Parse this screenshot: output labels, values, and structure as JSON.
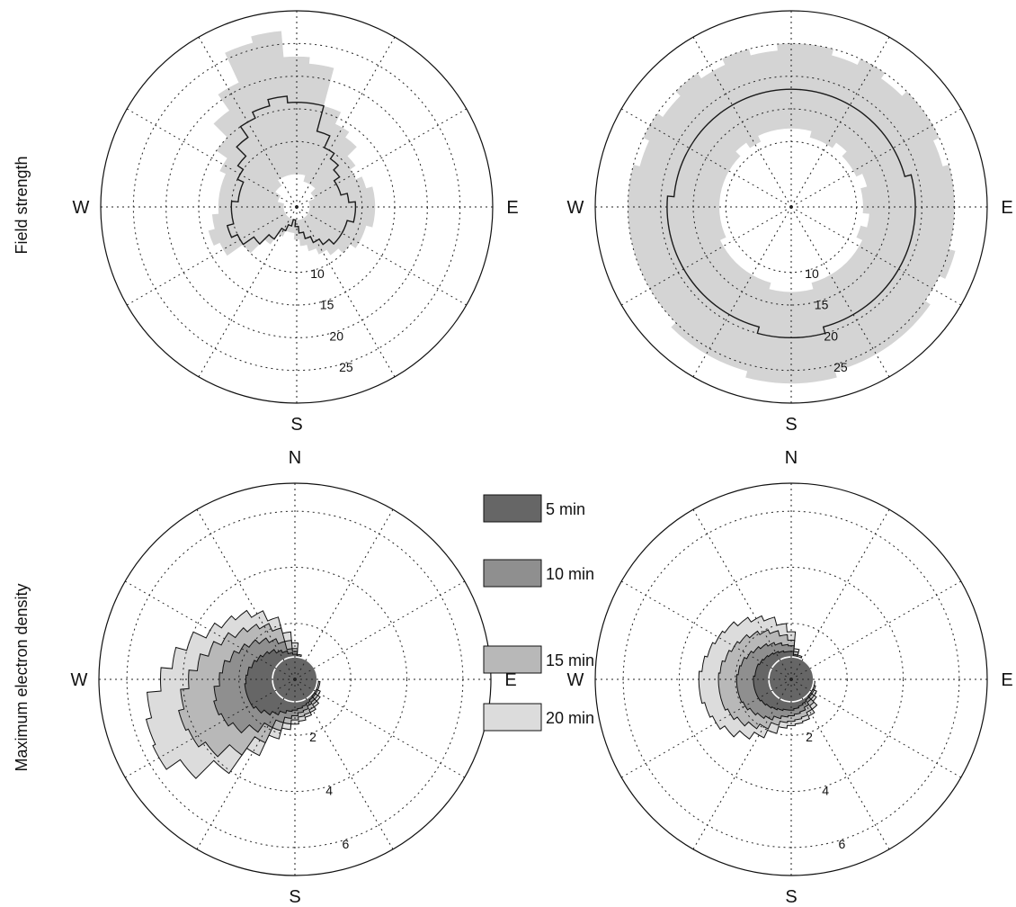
{
  "row_labels": {
    "top": "Field strength",
    "bottom": "Maximum electron density"
  },
  "chart_data": [
    {
      "type": "polar-area",
      "panel": "top-left",
      "ylabel": "Field strength",
      "direction_labels": [
        "N",
        "E",
        "S",
        "W"
      ],
      "shown_direction_labels": {
        "N": "",
        "E": "E",
        "S": "S",
        "W": "W"
      },
      "rmax": 30,
      "radial_ticks": [
        10,
        15,
        20,
        25
      ],
      "radial_tick_labels": [
        "10",
        "15",
        "20",
        "25"
      ],
      "grid": true,
      "colors": {
        "band": "#d4d4d4",
        "line": "#1a1a1a"
      },
      "angles_deg": [
        0,
        10,
        20,
        30,
        40,
        50,
        60,
        70,
        80,
        90,
        100,
        110,
        120,
        130,
        140,
        150,
        160,
        170,
        180,
        190,
        200,
        210,
        220,
        230,
        240,
        250,
        260,
        270,
        280,
        290,
        300,
        310,
        320,
        330,
        340,
        350
      ],
      "series": [
        {
          "role": "band-outer",
          "values": [
            23,
            22,
            16,
            14,
            13,
            11,
            10,
            11,
            12,
            12,
            12,
            11,
            11,
            10,
            9,
            8,
            7,
            6,
            5,
            4,
            4,
            5,
            7,
            10,
            13,
            14,
            13,
            12,
            12,
            12,
            13,
            15,
            18,
            21,
            26,
            27
          ]
        },
        {
          "role": "band-inner",
          "values": [
            5,
            5,
            4,
            4,
            4,
            3,
            3,
            2,
            2,
            2,
            2,
            2,
            2,
            2,
            2,
            2,
            2,
            2,
            2,
            2,
            2,
            2,
            2,
            2,
            2,
            2,
            2,
            2,
            2,
            3,
            3,
            4,
            4,
            5,
            5,
            5
          ]
        },
        {
          "role": "line",
          "values": [
            16,
            16,
            12,
            10,
            9,
            8,
            7,
            7,
            8,
            9,
            9,
            8,
            8,
            8,
            7,
            6,
            5,
            4,
            3,
            2,
            3,
            4,
            6,
            8,
            10,
            11,
            10,
            10,
            9,
            9,
            10,
            11,
            13,
            15,
            16,
            17
          ]
        }
      ]
    },
    {
      "type": "polar-area",
      "panel": "top-right",
      "ylabel": "",
      "direction_labels": [
        "N",
        "E",
        "S",
        "W"
      ],
      "shown_direction_labels": {
        "N": "",
        "E": "E",
        "S": "S",
        "W": "W"
      },
      "rmax": 30,
      "radial_ticks": [
        10,
        15,
        20,
        25
      ],
      "radial_tick_labels": [
        "10",
        "15",
        "20",
        "25"
      ],
      "grid": true,
      "colors": {
        "band": "#d4d4d4",
        "line": "#1a1a1a"
      },
      "angles_deg": [
        0,
        10,
        20,
        30,
        40,
        50,
        60,
        70,
        80,
        90,
        100,
        110,
        120,
        130,
        140,
        150,
        160,
        170,
        180,
        190,
        200,
        210,
        220,
        230,
        240,
        250,
        260,
        270,
        280,
        290,
        300,
        310,
        320,
        330,
        340,
        350
      ],
      "series": [
        {
          "role": "band-outer",
          "values": [
            25,
            25,
            24,
            25,
            24,
            25,
            25,
            24,
            25,
            25,
            25,
            26,
            25,
            26,
            26,
            26,
            26,
            27,
            27,
            27,
            26,
            26,
            26,
            25,
            25,
            25,
            25,
            25,
            25,
            24,
            25,
            24,
            25,
            24,
            25,
            24
          ]
        },
        {
          "role": "band-inner",
          "values": [
            12,
            12,
            11,
            11,
            12,
            11,
            11,
            12,
            11,
            11,
            12,
            11,
            12,
            12,
            12,
            12,
            12,
            13,
            13,
            13,
            12,
            12,
            12,
            12,
            12,
            11,
            11,
            11,
            11,
            11,
            11,
            11,
            12,
            11,
            12,
            12
          ]
        },
        {
          "role": "line",
          "values": [
            18,
            18,
            18,
            18,
            18,
            18,
            18,
            18,
            19,
            19,
            19,
            19,
            19,
            19,
            19,
            19,
            19,
            20,
            20,
            20,
            19,
            19,
            19,
            19,
            19,
            19,
            19,
            19,
            18,
            18,
            18,
            18,
            18,
            18,
            18,
            18
          ]
        }
      ]
    },
    {
      "type": "polar-area",
      "panel": "bottom-left",
      "ylabel": "Maximum electron density",
      "direction_labels": [
        "N",
        "E",
        "S",
        "W"
      ],
      "shown_direction_labels": {
        "N": "N",
        "E": "E",
        "S": "S",
        "W": "W"
      },
      "rmax": 7,
      "radial_ticks": [
        2,
        4,
        6
      ],
      "radial_tick_labels": [
        "2",
        "4",
        "6"
      ],
      "grid": true,
      "angles_deg": [
        0,
        10,
        20,
        30,
        40,
        50,
        60,
        70,
        80,
        90,
        100,
        110,
        120,
        130,
        140,
        150,
        160,
        170,
        180,
        190,
        200,
        210,
        220,
        230,
        240,
        250,
        260,
        270,
        280,
        290,
        300,
        310,
        320,
        330,
        340,
        350
      ],
      "series": [
        {
          "name": "20 min",
          "color": "#dcdcdc",
          "values": [
            1.3,
            0.9,
            0.8,
            0.8,
            0.8,
            0.8,
            0.8,
            0.8,
            0.8,
            0.8,
            0.9,
            0.9,
            1.0,
            1.1,
            1.2,
            1.3,
            1.4,
            1.5,
            1.6,
            1.8,
            2.2,
            3.0,
            4.1,
            5.0,
            5.6,
            5.5,
            5.3,
            4.8,
            4.4,
            4.0,
            3.5,
            3.2,
            3.0,
            2.7,
            2.3,
            1.7
          ]
        },
        {
          "name": "15 min",
          "color": "#b8b8b8",
          "values": [
            1.1,
            0.85,
            0.8,
            0.8,
            0.8,
            0.8,
            0.8,
            0.8,
            0.8,
            0.8,
            0.85,
            0.85,
            0.9,
            1.0,
            1.1,
            1.2,
            1.3,
            1.35,
            1.45,
            1.6,
            1.9,
            2.5,
            3.3,
            3.9,
            4.2,
            4.3,
            4.1,
            3.8,
            3.5,
            3.2,
            2.9,
            2.6,
            2.4,
            2.2,
            1.9,
            1.4
          ]
        },
        {
          "name": "10 min",
          "color": "#8f8f8f",
          "values": [
            1.0,
            0.8,
            0.8,
            0.8,
            0.8,
            0.8,
            0.8,
            0.8,
            0.8,
            0.8,
            0.8,
            0.8,
            0.85,
            0.9,
            1.0,
            1.05,
            1.15,
            1.2,
            1.3,
            1.4,
            1.6,
            1.9,
            2.3,
            2.7,
            2.9,
            3.0,
            2.9,
            2.7,
            2.6,
            2.4,
            2.2,
            2.0,
            1.8,
            1.6,
            1.4,
            1.1
          ]
        },
        {
          "name": "5 min",
          "color": "#666666",
          "values": [
            0.9,
            0.8,
            0.8,
            0.8,
            0.8,
            0.8,
            0.8,
            0.8,
            0.8,
            0.8,
            0.8,
            0.8,
            0.8,
            0.85,
            0.9,
            0.95,
            1.0,
            1.05,
            1.1,
            1.15,
            1.25,
            1.4,
            1.55,
            1.7,
            1.8,
            1.8,
            1.8,
            1.75,
            1.7,
            1.6,
            1.5,
            1.4,
            1.3,
            1.15,
            1.05,
            0.95
          ]
        }
      ],
      "reference_circle": {
        "radius": 0.8,
        "color": "#ffffff"
      }
    },
    {
      "type": "polar-area",
      "panel": "bottom-right",
      "ylabel": "",
      "direction_labels": [
        "N",
        "E",
        "S",
        "W"
      ],
      "shown_direction_labels": {
        "N": "N",
        "E": "E",
        "S": "S",
        "W": "W"
      },
      "rmax": 7,
      "radial_ticks": [
        2,
        4,
        6
      ],
      "radial_tick_labels": [
        "2",
        "4",
        "6"
      ],
      "grid": true,
      "angles_deg": [
        0,
        10,
        20,
        30,
        40,
        50,
        60,
        70,
        80,
        90,
        100,
        110,
        120,
        130,
        140,
        150,
        160,
        170,
        180,
        190,
        200,
        210,
        220,
        230,
        240,
        250,
        260,
        270,
        280,
        290,
        300,
        310,
        320,
        330,
        340,
        350
      ],
      "series": [
        {
          "name": "20 min",
          "color": "#dcdcdc",
          "values": [
            1.7,
            1.1,
            0.9,
            0.8,
            0.8,
            0.8,
            0.8,
            0.8,
            0.8,
            0.8,
            0.85,
            0.9,
            1.0,
            1.1,
            1.3,
            1.45,
            1.55,
            1.6,
            1.65,
            1.75,
            2.0,
            2.3,
            2.6,
            2.9,
            3.1,
            3.2,
            3.3,
            3.3,
            3.2,
            3.1,
            3.0,
            2.9,
            2.7,
            2.5,
            2.3,
            2.0
          ]
        },
        {
          "name": "15 min",
          "color": "#b8b8b8",
          "values": [
            1.4,
            1.0,
            0.85,
            0.8,
            0.8,
            0.8,
            0.8,
            0.8,
            0.8,
            0.8,
            0.8,
            0.85,
            0.9,
            1.0,
            1.15,
            1.3,
            1.4,
            1.45,
            1.5,
            1.55,
            1.7,
            1.95,
            2.15,
            2.35,
            2.5,
            2.6,
            2.6,
            2.6,
            2.55,
            2.45,
            2.35,
            2.25,
            2.1,
            1.95,
            1.8,
            1.6
          ]
        },
        {
          "name": "10 min",
          "color": "#8f8f8f",
          "values": [
            1.2,
            0.9,
            0.8,
            0.8,
            0.8,
            0.8,
            0.8,
            0.8,
            0.8,
            0.8,
            0.8,
            0.8,
            0.85,
            0.9,
            1.0,
            1.1,
            1.2,
            1.25,
            1.3,
            1.35,
            1.45,
            1.6,
            1.7,
            1.8,
            1.9,
            1.95,
            1.95,
            1.95,
            1.9,
            1.85,
            1.75,
            1.65,
            1.55,
            1.45,
            1.35,
            1.25
          ]
        },
        {
          "name": "5 min",
          "color": "#666666",
          "values": [
            1.0,
            0.85,
            0.8,
            0.8,
            0.8,
            0.8,
            0.8,
            0.8,
            0.8,
            0.8,
            0.8,
            0.8,
            0.8,
            0.85,
            0.9,
            0.95,
            1.0,
            1.05,
            1.1,
            1.1,
            1.15,
            1.2,
            1.25,
            1.3,
            1.35,
            1.35,
            1.35,
            1.35,
            1.3,
            1.3,
            1.25,
            1.2,
            1.15,
            1.1,
            1.05,
            1.0
          ]
        }
      ],
      "reference_circle": {
        "radius": 0.8,
        "color": "#ffffff"
      }
    }
  ],
  "legend": {
    "items": [
      {
        "label": "5 min",
        "color": "#666666"
      },
      {
        "label": "10 min",
        "color": "#8f8f8f"
      },
      {
        "label": "15 min",
        "color": "#b8b8b8"
      },
      {
        "label": "20 min",
        "color": "#dcdcdc"
      }
    ]
  }
}
